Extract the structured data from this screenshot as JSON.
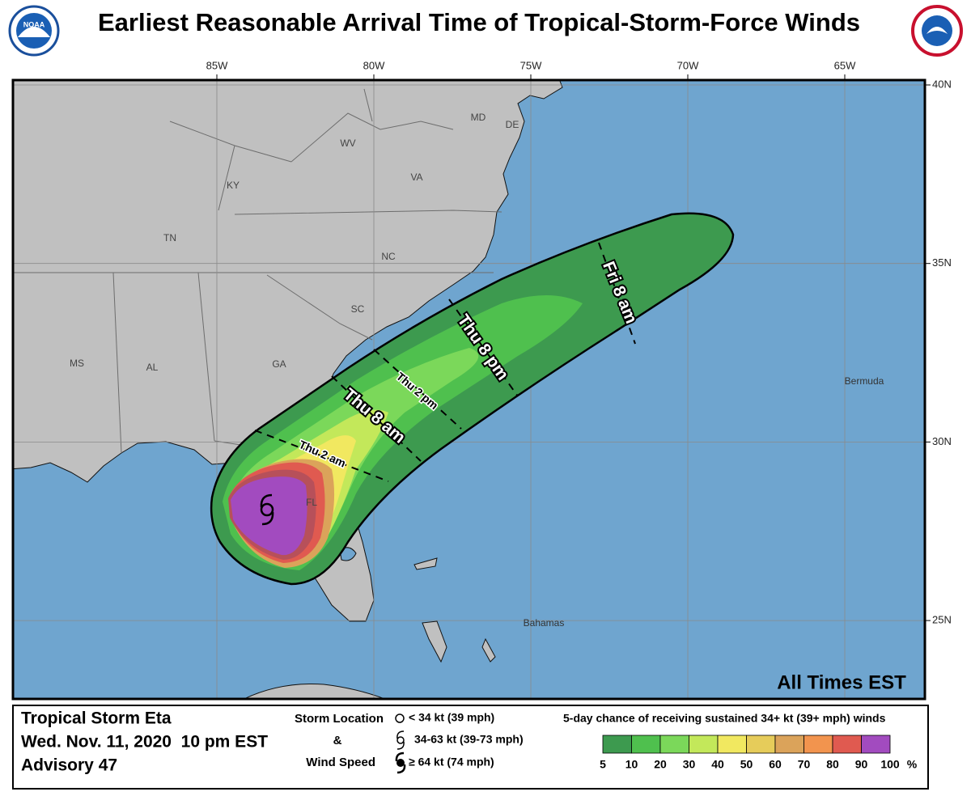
{
  "header": {
    "title": "Earliest Reasonable Arrival Time of Tropical-Storm-Force Winds",
    "logo_text": "NOAA"
  },
  "map": {
    "longitude_labels": [
      "85W",
      "80W",
      "75W",
      "70W",
      "65W"
    ],
    "latitude_labels": [
      "40N",
      "35N",
      "30N",
      "25N"
    ],
    "state_labels": [
      "WV",
      "KY",
      "VA",
      "TN",
      "NC",
      "SC",
      "MS",
      "AL",
      "GA",
      "FL",
      "MD",
      "DE"
    ],
    "place_labels": [
      "Bermuda",
      "Bahamas"
    ],
    "time_labels": [
      "Fri 8 am",
      "Thu 8 pm",
      "Thu 2 pm",
      "Thu 8 am",
      "Thu 2 am"
    ],
    "note": "All Times EST"
  },
  "footer": {
    "storm": "Tropical Storm Eta",
    "date": "Wed. Nov. 11, 2020  10 pm EST",
    "advisory": "Advisory 47",
    "symbol_legend": {
      "heading": [
        "Storm Location",
        "&",
        "Wind Speed"
      ],
      "items": [
        "< 34 kt (39 mph)",
        "34-63 kt (39-73 mph)",
        "≥ 64 kt (74 mph)"
      ]
    },
    "color_legend": {
      "title": "5-day chance of receiving sustained 34+ kt (39+ mph) winds",
      "labels": [
        5,
        10,
        20,
        30,
        40,
        50,
        60,
        70,
        80,
        90,
        100
      ],
      "unit": "%"
    }
  }
}
